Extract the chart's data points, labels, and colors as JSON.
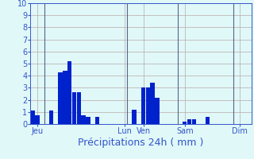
{
  "title": "",
  "xlabel": "Précipitations 24h ( mm )",
  "bg_color": "#e0f8f8",
  "bar_color": "#0022cc",
  "grid_color": "#b8a8a8",
  "text_color": "#3355cc",
  "vline_color": "#556688",
  "ylim": [
    0,
    10
  ],
  "xlim": [
    -0.5,
    47.5
  ],
  "bar_data": [
    [
      0,
      1.1
    ],
    [
      1,
      0.7
    ],
    [
      4,
      1.1
    ],
    [
      6,
      4.3
    ],
    [
      7,
      4.4
    ],
    [
      8,
      5.2
    ],
    [
      9,
      2.6
    ],
    [
      10,
      2.6
    ],
    [
      11,
      0.7
    ],
    [
      12,
      0.6
    ],
    [
      14,
      0.6
    ],
    [
      22,
      1.2
    ],
    [
      24,
      3.0
    ],
    [
      25,
      3.0
    ],
    [
      26,
      3.4
    ],
    [
      27,
      2.2
    ],
    [
      33,
      0.2
    ],
    [
      34,
      0.4
    ],
    [
      35,
      0.4
    ],
    [
      38,
      0.6
    ]
  ],
  "vlines": [
    2.5,
    20.5,
    31.5,
    43.5
  ],
  "xtick_positions": [
    1,
    20,
    24,
    33,
    45
  ],
  "xtick_labels": [
    "Jeu",
    "Lun",
    "Ven",
    "Sam",
    "Dim"
  ],
  "yticks": [
    0,
    1,
    2,
    3,
    4,
    5,
    6,
    7,
    8,
    9,
    10
  ],
  "tick_fontsize": 7,
  "xlabel_fontsize": 9
}
